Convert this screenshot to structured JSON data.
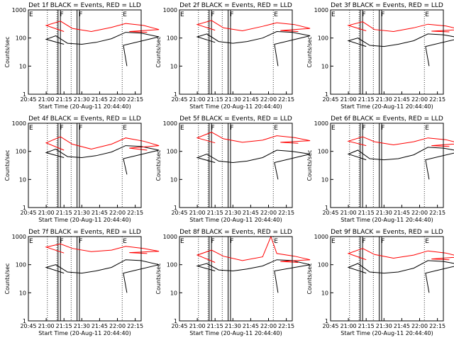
{
  "colors": {
    "events": "#000000",
    "lld": "#ff0000",
    "marker": "#000000"
  },
  "shared": {
    "xlabel": "Start Time (20-Aug-11 20:44:40)",
    "ylabel": "Counts/sec",
    "x_tick_labels": [
      "20:45",
      "21:00",
      "21:15",
      "21:30",
      "21:45",
      "22:00",
      "22:15"
    ],
    "y_tick_labels": [
      "1",
      "10",
      "100",
      "1000"
    ],
    "xlim_minutes_after_2045": [
      0,
      95
    ],
    "ylim": [
      1,
      1000
    ],
    "y_scale": "log",
    "marker_letters": [
      "E",
      "F",
      "F",
      "E"
    ],
    "marker_times": [
      "20:45",
      "21:11",
      "21:27",
      "22:04"
    ],
    "dotted_times": [
      "21:01",
      "21:09",
      "21:21",
      "22:04"
    ],
    "bar_intervals": [
      [
        "21:10",
        "21:12"
      ],
      [
        "21:26",
        "21:28"
      ]
    ]
  },
  "chart_data": [
    {
      "type": "line",
      "title": "Det 1f BLACK = Events, RED = LLD",
      "series": [
        {
          "key": "events",
          "values": [
            [
              20.75,
              60
            ],
            [
              21.0,
              90
            ],
            [
              21.08,
              120
            ],
            [
              21.18,
              65
            ],
            [
              21.3,
              60
            ],
            [
              21.42,
              70
            ],
            [
              21.55,
              95
            ],
            [
              21.67,
              160
            ],
            [
              21.8,
              150
            ],
            [
              21.95,
              110
            ],
            [
              22.05,
              55
            ],
            [
              22.08,
              10
            ]
          ]
        },
        {
          "key": "lld",
          "values": [
            [
              20.75,
              170
            ],
            [
              21.0,
              280
            ],
            [
              21.12,
              400
            ],
            [
              21.22,
              220
            ],
            [
              21.38,
              170
            ],
            [
              21.55,
              240
            ],
            [
              21.67,
              330
            ],
            [
              21.82,
              280
            ],
            [
              21.95,
              200
            ],
            [
              22.1,
              170
            ],
            [
              22.25,
              160
            ]
          ]
        }
      ]
    },
    {
      "type": "line",
      "title": "Det 2f BLACK = Events, RED = LLD",
      "series": [
        {
          "key": "events",
          "values": [
            [
              20.75,
              70
            ],
            [
              21.0,
              110
            ],
            [
              21.08,
              140
            ],
            [
              21.18,
              75
            ],
            [
              21.3,
              65
            ],
            [
              21.42,
              75
            ],
            [
              21.55,
              100
            ],
            [
              21.67,
              170
            ],
            [
              21.8,
              160
            ],
            [
              21.95,
              120
            ],
            [
              22.05,
              60
            ],
            [
              22.08,
              10
            ]
          ]
        },
        {
          "key": "lld",
          "values": [
            [
              20.75,
              190
            ],
            [
              21.0,
              300
            ],
            [
              21.12,
              420
            ],
            [
              21.22,
              230
            ],
            [
              21.38,
              180
            ],
            [
              21.55,
              260
            ],
            [
              21.67,
              350
            ],
            [
              21.82,
              300
            ],
            [
              21.95,
              220
            ],
            [
              22.1,
              185
            ],
            [
              22.25,
              170
            ]
          ]
        }
      ]
    },
    {
      "type": "line",
      "title": "Det 3f BLACK = Events, RED = LLD",
      "series": [
        {
          "key": "events",
          "values": [
            [
              20.75,
              50
            ],
            [
              21.0,
              80
            ],
            [
              21.08,
              100
            ],
            [
              21.18,
              55
            ],
            [
              21.3,
              50
            ],
            [
              21.42,
              60
            ],
            [
              21.55,
              80
            ],
            [
              21.67,
              140
            ],
            [
              21.8,
              130
            ],
            [
              21.95,
              100
            ],
            [
              22.05,
              50
            ],
            [
              22.08,
              10
            ]
          ]
        },
        {
          "key": "lld",
          "values": [
            [
              20.75,
              180
            ],
            [
              21.0,
              280
            ],
            [
              21.12,
              380
            ],
            [
              21.22,
              200
            ],
            [
              21.38,
              170
            ],
            [
              21.55,
              230
            ],
            [
              21.67,
              310
            ],
            [
              21.82,
              270
            ],
            [
              21.95,
              200
            ],
            [
              22.1,
              175
            ],
            [
              22.25,
              165
            ]
          ]
        }
      ]
    },
    {
      "type": "line",
      "title": "Det 4f BLACK = Events, RED = LLD",
      "series": [
        {
          "key": "events",
          "values": [
            [
              20.75,
              60
            ],
            [
              21.0,
              90
            ],
            [
              21.08,
              120
            ],
            [
              21.18,
              65
            ],
            [
              21.3,
              60
            ],
            [
              21.42,
              70
            ],
            [
              21.55,
              95
            ],
            [
              21.67,
              160
            ],
            [
              21.8,
              150
            ],
            [
              21.95,
              110
            ],
            [
              22.05,
              55
            ],
            [
              22.08,
              15
            ]
          ]
        },
        {
          "key": "lld",
          "values": [
            [
              20.75,
              110
            ],
            [
              21.0,
              200
            ],
            [
              21.12,
              330
            ],
            [
              21.22,
              180
            ],
            [
              21.38,
              120
            ],
            [
              21.55,
              180
            ],
            [
              21.67,
              300
            ],
            [
              21.82,
              230
            ],
            [
              21.95,
              160
            ],
            [
              22.1,
              130
            ],
            [
              22.25,
              110
            ]
          ]
        }
      ]
    },
    {
      "type": "line",
      "title": "Det 5f BLACK = Events, RED = LLD",
      "series": [
        {
          "key": "events",
          "values": [
            [
              20.75,
              40
            ],
            [
              21.0,
              60
            ],
            [
              21.08,
              80
            ],
            [
              21.18,
              45
            ],
            [
              21.3,
              40
            ],
            [
              21.42,
              45
            ],
            [
              21.55,
              60
            ],
            [
              21.67,
              110
            ],
            [
              21.8,
              100
            ],
            [
              21.95,
              80
            ],
            [
              22.05,
              40
            ],
            [
              22.08,
              10
            ]
          ]
        },
        {
          "key": "lld",
          "values": [
            [
              20.75,
              200
            ],
            [
              21.0,
              300
            ],
            [
              21.12,
              480
            ],
            [
              21.22,
              280
            ],
            [
              21.38,
              210
            ],
            [
              21.55,
              250
            ],
            [
              21.67,
              360
            ],
            [
              21.82,
              310
            ],
            [
              21.95,
              240
            ],
            [
              22.1,
              210
            ],
            [
              22.25,
              195
            ]
          ]
        }
      ]
    },
    {
      "type": "line",
      "title": "Det 6f BLACK = Events, RED = LLD",
      "series": [
        {
          "key": "events",
          "values": [
            [
              20.75,
              50
            ],
            [
              21.0,
              80
            ],
            [
              21.08,
              110
            ],
            [
              21.18,
              55
            ],
            [
              21.3,
              50
            ],
            [
              21.42,
              55
            ],
            [
              21.55,
              75
            ],
            [
              21.67,
              140
            ],
            [
              21.8,
              130
            ],
            [
              21.95,
              100
            ],
            [
              22.05,
              50
            ],
            [
              22.08,
              10
            ]
          ]
        },
        {
          "key": "lld",
          "values": [
            [
              20.75,
              160
            ],
            [
              21.0,
              230
            ],
            [
              21.12,
              330
            ],
            [
              21.22,
              220
            ],
            [
              21.38,
              170
            ],
            [
              21.55,
              220
            ],
            [
              21.67,
              300
            ],
            [
              21.82,
              260
            ],
            [
              21.95,
              190
            ],
            [
              22.1,
              160
            ],
            [
              22.25,
              150
            ]
          ]
        }
      ]
    },
    {
      "type": "line",
      "title": "Det 7f BLACK = Events, RED = LLD",
      "series": [
        {
          "key": "events",
          "values": [
            [
              20.75,
              50
            ],
            [
              21.0,
              80
            ],
            [
              21.08,
              100
            ],
            [
              21.18,
              55
            ],
            [
              21.3,
              50
            ],
            [
              21.42,
              60
            ],
            [
              21.55,
              80
            ],
            [
              21.67,
              150
            ],
            [
              21.8,
              140
            ],
            [
              21.95,
              100
            ],
            [
              22.05,
              50
            ],
            [
              22.08,
              10
            ]
          ]
        },
        {
          "key": "lld",
          "values": [
            [
              20.75,
              260
            ],
            [
              21.0,
              420
            ],
            [
              21.12,
              550
            ],
            [
              21.22,
              380
            ],
            [
              21.38,
              290
            ],
            [
              21.55,
              330
            ],
            [
              21.67,
              450
            ],
            [
              21.82,
              380
            ],
            [
              21.95,
              300
            ],
            [
              22.1,
              270
            ],
            [
              22.25,
              250
            ]
          ]
        }
      ]
    },
    {
      "type": "line",
      "title": "Det 8f BLACK = Events, RED = LLD",
      "series": [
        {
          "key": "events",
          "values": [
            [
              20.75,
              60
            ],
            [
              21.0,
              90
            ],
            [
              21.08,
              110
            ],
            [
              21.18,
              65
            ],
            [
              21.3,
              60
            ],
            [
              21.42,
              70
            ],
            [
              21.55,
              90
            ],
            [
              21.67,
              150
            ],
            [
              21.8,
              140
            ],
            [
              21.95,
              100
            ],
            [
              22.05,
              60
            ],
            [
              22.08,
              10
            ]
          ]
        },
        {
          "key": "lld",
          "values": [
            [
              20.75,
              120
            ],
            [
              21.0,
              220
            ],
            [
              21.12,
              330
            ],
            [
              21.22,
              200
            ],
            [
              21.38,
              140
            ],
            [
              21.55,
              190
            ],
            [
              21.62,
              1000
            ],
            [
              21.67,
              250
            ],
            [
              21.82,
              200
            ],
            [
              21.95,
              150
            ],
            [
              22.1,
              130
            ],
            [
              22.25,
              120
            ]
          ]
        }
      ]
    },
    {
      "type": "line",
      "title": "Det 9f BLACK = Events, RED = LLD",
      "series": [
        {
          "key": "events",
          "values": [
            [
              20.75,
              50
            ],
            [
              21.0,
              80
            ],
            [
              21.08,
              110
            ],
            [
              21.18,
              55
            ],
            [
              21.3,
              50
            ],
            [
              21.42,
              55
            ],
            [
              21.55,
              75
            ],
            [
              21.67,
              140
            ],
            [
              21.8,
              130
            ],
            [
              21.95,
              100
            ],
            [
              22.05,
              50
            ],
            [
              22.08,
              10
            ]
          ]
        },
        {
          "key": "lld",
          "values": [
            [
              20.75,
              150
            ],
            [
              21.0,
              250
            ],
            [
              21.12,
              380
            ],
            [
              21.22,
              230
            ],
            [
              21.38,
              170
            ],
            [
              21.55,
              220
            ],
            [
              21.67,
              310
            ],
            [
              21.82,
              260
            ],
            [
              21.95,
              190
            ],
            [
              22.1,
              160
            ],
            [
              22.25,
              150
            ]
          ]
        }
      ]
    }
  ]
}
